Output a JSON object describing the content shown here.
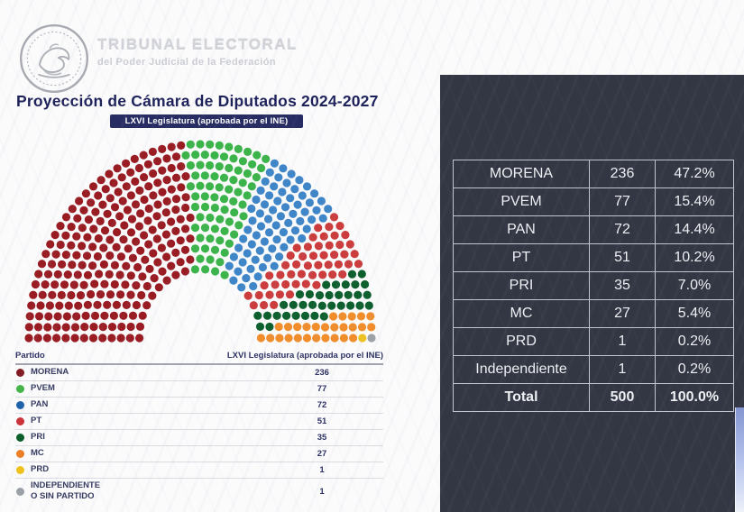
{
  "branding": {
    "org_name": "TRIBUNAL ELECTORAL",
    "org_subtitle": "del Poder Judicial de la Federación",
    "seal": "mexican-national-seal"
  },
  "header": {
    "title": "Proyección de Cámara de Diputados 2024-2027",
    "badge": "LXVI Legislatura (aprobada por el INE)"
  },
  "legend": {
    "header_party": "Partido",
    "header_value": "LXVI Legislatura (aprobada por el INE)",
    "rows": [
      {
        "label": "MORENA",
        "seats": "236",
        "color": "#821a1f"
      },
      {
        "label": "PVEM",
        "seats": "77",
        "color": "#45b54a"
      },
      {
        "label": "PAN",
        "seats": "72",
        "color": "#1e62a9"
      },
      {
        "label": "PT",
        "seats": "51",
        "color": "#cd3339"
      },
      {
        "label": "PRI",
        "seats": "35",
        "color": "#0a5e29"
      },
      {
        "label": "MC",
        "seats": "27",
        "color": "#ee7e20"
      },
      {
        "label": "PRD",
        "seats": "1",
        "color": "#eec11d"
      },
      {
        "label": "INDEPENDIENTE\nO SIN PARTIDO",
        "seats": "1",
        "color": "#9aa0a6"
      }
    ]
  },
  "summary_table": {
    "rows": [
      {
        "party": "MORENA",
        "seats": "236",
        "pct": "47.2%"
      },
      {
        "party": "PVEM",
        "seats": "77",
        "pct": "15.4%"
      },
      {
        "party": "PAN",
        "seats": "72",
        "pct": "14.4%"
      },
      {
        "party": "PT",
        "seats": "51",
        "pct": "10.2%"
      },
      {
        "party": "PRI",
        "seats": "35",
        "pct": "7.0%"
      },
      {
        "party": "MC",
        "seats": "27",
        "pct": "5.4%"
      },
      {
        "party": "PRD",
        "seats": "1",
        "pct": "0.2%"
      },
      {
        "party": "Independiente",
        "seats": "1",
        "pct": "0.2%"
      }
    ],
    "total": {
      "party": "Total",
      "seats": "500",
      "pct": "100.0%"
    }
  },
  "chart_data": {
    "type": "parliament",
    "title": "Proyección de Cámara de Diputados 2024-2027",
    "subtitle": "LXVI Legislatura (aprobada por el INE)",
    "total_seats": 500,
    "series": [
      {
        "name": "MORENA",
        "seats": 236,
        "pct": 47.2,
        "color": "#9a1c23"
      },
      {
        "name": "PVEM",
        "seats": 77,
        "pct": 15.4,
        "color": "#3bb44a"
      },
      {
        "name": "PAN",
        "seats": 72,
        "pct": 14.4,
        "color": "#3f86c9"
      },
      {
        "name": "PT",
        "seats": 51,
        "pct": 10.2,
        "color": "#cc3c3c"
      },
      {
        "name": "PRI",
        "seats": 35,
        "pct": 7.0,
        "color": "#0d5f2d"
      },
      {
        "name": "MC",
        "seats": 27,
        "pct": 5.4,
        "color": "#f18d2b"
      },
      {
        "name": "PRD",
        "seats": 1,
        "pct": 0.2,
        "color": "#eec320"
      },
      {
        "name": "Independiente",
        "seats": 1,
        "pct": 0.2,
        "color": "#9ba1a7"
      }
    ],
    "layout": {
      "arc_degrees": 180,
      "rows": 13,
      "inner_outer_ratio": 0.355,
      "fill_order": "by-angle-left-to-right",
      "legend_position": "bottom-left"
    }
  }
}
